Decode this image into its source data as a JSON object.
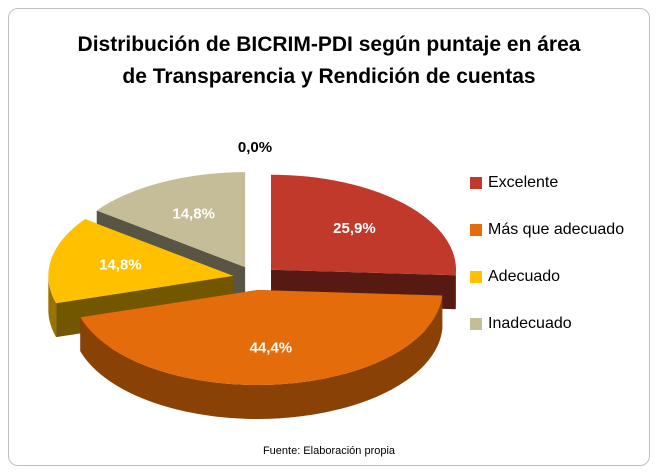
{
  "chart_data": {
    "type": "pie3d",
    "title": "Distribución de BICRIM-PDI según puntaje en área de Transparencia  y Rendición de cuentas",
    "categories": [
      "Excelente",
      "Más que adecuado",
      "Adecuado",
      "Inadecuado",
      null
    ],
    "values": [
      25.9,
      44.4,
      14.8,
      14.8,
      0
    ],
    "value_labels": [
      "25,9%",
      "44,4%",
      "14,8%",
      "14,8%",
      "0,0%"
    ],
    "colors": [
      "#c0392b",
      "#e46c0a",
      "#ffc000",
      "#c4bd97",
      null
    ],
    "legend": "right",
    "source": "Fuente: Elaboración propia"
  }
}
